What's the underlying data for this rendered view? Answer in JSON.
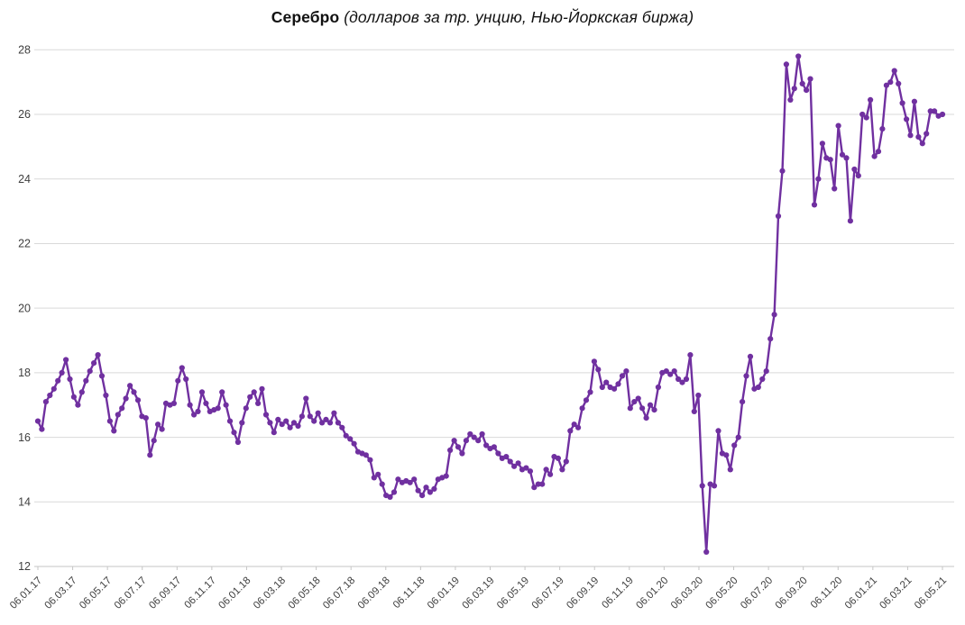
{
  "title": {
    "main": "Серебро",
    "sub": " (долларов за тр. унцию, Нью-Йоркская биржа)"
  },
  "colors": {
    "line": "#7030a0",
    "marker": "#7030a0",
    "grid": "#d9d9d9",
    "axis": "#c6c6c6",
    "tick_label": "#3f3f3f",
    "background": "#ffffff"
  },
  "chart_data": {
    "type": "line",
    "title": "Серебро (долларов за тр. унцию, Нью-Йоркская биржа)",
    "series_name": "Серебро, долларов за тройскую унцию",
    "frequency": "weekly",
    "x_start": "06.01.17",
    "x_end": "06.05.21",
    "xlabel": "",
    "ylabel": "",
    "ylim": [
      12,
      28
    ],
    "grid": "horizontal",
    "legend": "none",
    "marker": "circle",
    "y_ticks": [
      12,
      14,
      16,
      18,
      20,
      22,
      24,
      26,
      28
    ],
    "x_tick_labels": [
      "06.01.17",
      "06.03.17",
      "06.05.17",
      "06.07.17",
      "06.09.17",
      "06.11.17",
      "06.01.18",
      "06.03.18",
      "06.05.18",
      "06.07.18",
      "06.09.18",
      "06.11.18",
      "06.01.19",
      "06.03.19",
      "06.05.19",
      "06.07.19",
      "06.09.19",
      "06.11.19",
      "06.01.20",
      "06.03.20",
      "06.05.20",
      "06.07.20",
      "06.09.20",
      "06.11.20",
      "06.01.21",
      "06.03.21",
      "06.05.21"
    ],
    "values": [
      16.5,
      16.25,
      17.1,
      17.3,
      17.5,
      17.75,
      18.0,
      18.4,
      17.8,
      17.25,
      17.0,
      17.4,
      17.75,
      18.05,
      18.3,
      18.55,
      17.9,
      17.3,
      16.5,
      16.2,
      16.7,
      16.9,
      17.2,
      17.6,
      17.4,
      17.15,
      16.65,
      16.6,
      15.45,
      15.9,
      16.4,
      16.25,
      17.05,
      17.0,
      17.05,
      17.75,
      18.15,
      17.8,
      17.0,
      16.7,
      16.8,
      17.4,
      17.05,
      16.8,
      16.85,
      16.9,
      17.4,
      17.0,
      16.5,
      16.15,
      15.85,
      16.45,
      16.9,
      17.25,
      17.4,
      17.05,
      17.5,
      16.7,
      16.45,
      16.15,
      16.55,
      16.4,
      16.5,
      16.3,
      16.45,
      16.35,
      16.65,
      17.2,
      16.65,
      16.5,
      16.75,
      16.45,
      16.55,
      16.45,
      16.75,
      16.45,
      16.3,
      16.05,
      15.95,
      15.8,
      15.55,
      15.5,
      15.45,
      15.3,
      14.75,
      14.85,
      14.55,
      14.2,
      14.15,
      14.3,
      14.7,
      14.6,
      14.65,
      14.6,
      14.7,
      14.35,
      14.2,
      14.45,
      14.3,
      14.4,
      14.7,
      14.75,
      14.8,
      15.6,
      15.9,
      15.7,
      15.5,
      15.9,
      16.1,
      16.0,
      15.9,
      16.1,
      15.75,
      15.65,
      15.7,
      15.5,
      15.35,
      15.4,
      15.25,
      15.1,
      15.2,
      15.0,
      15.05,
      14.95,
      14.45,
      14.55,
      14.55,
      15.0,
      14.85,
      15.4,
      15.35,
      15.0,
      15.25,
      16.2,
      16.4,
      16.3,
      16.9,
      17.15,
      17.4,
      18.35,
      18.1,
      17.55,
      17.7,
      17.55,
      17.5,
      17.65,
      17.9,
      18.05,
      16.9,
      17.1,
      17.2,
      16.9,
      16.6,
      17.0,
      16.85,
      17.55,
      18.0,
      18.05,
      17.95,
      18.05,
      17.8,
      17.7,
      17.8,
      18.55,
      16.8,
      17.3,
      14.5,
      12.45,
      14.55,
      14.5,
      16.2,
      15.5,
      15.45,
      15.0,
      15.75,
      16.0,
      17.1,
      17.9,
      18.5,
      17.5,
      17.55,
      17.8,
      18.05,
      19.05,
      19.8,
      22.85,
      24.25,
      27.55,
      26.45,
      26.8,
      27.8,
      26.95,
      26.75,
      27.1,
      23.2,
      24.0,
      25.1,
      24.65,
      24.6,
      23.7,
      25.65,
      24.75,
      24.65,
      22.7,
      24.3,
      24.1,
      26.0,
      25.9,
      26.45,
      24.7,
      24.85,
      25.55,
      26.9,
      27.0,
      27.35,
      26.95,
      26.35,
      25.85,
      25.35,
      26.4,
      25.3,
      25.1,
      25.4,
      26.1,
      26.1,
      25.95,
      26.0
    ]
  }
}
